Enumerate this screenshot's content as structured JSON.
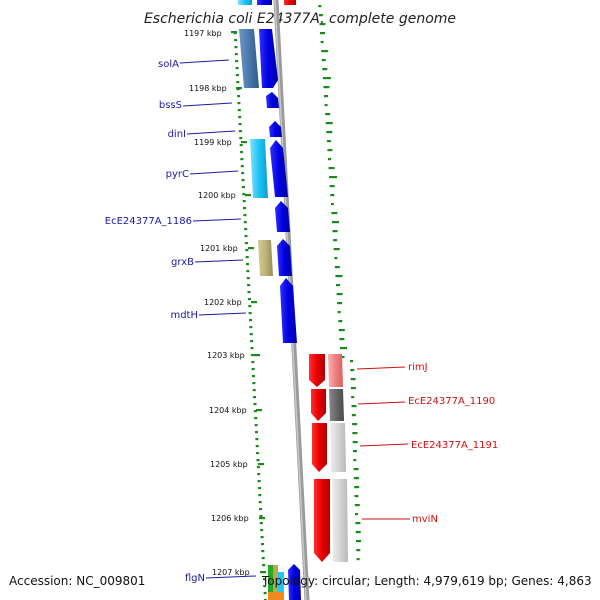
{
  "title": "Escherichia coli E24377A, complete genome",
  "kbp_ticks": [
    {
      "label": "1197 kbp"
    },
    {
      "label": "1198 kbp"
    },
    {
      "label": "1199 kbp"
    },
    {
      "label": "1200 kbp"
    },
    {
      "label": "1201 kbp"
    },
    {
      "label": "1202 kbp"
    },
    {
      "label": "1203 kbp"
    },
    {
      "label": "1204 kbp"
    },
    {
      "label": "1205 kbp"
    },
    {
      "label": "1206 kbp"
    },
    {
      "label": "1207 kbp"
    }
  ],
  "genes_left": [
    {
      "name": "solA"
    },
    {
      "name": "bssS"
    },
    {
      "name": "dinI"
    },
    {
      "name": "pyrC"
    },
    {
      "name": "EcE24377A_1186"
    },
    {
      "name": "grxB"
    },
    {
      "name": "mdtH"
    },
    {
      "name": "flgN"
    }
  ],
  "genes_right": [
    {
      "name": "rimJ"
    },
    {
      "name": "EcE24377A_1190"
    },
    {
      "name": "EcE24377A_1191"
    },
    {
      "name": "mviN"
    }
  ],
  "footer": {
    "accession": "Accession: NC_009801",
    "topology": "Topology: circular; Length: 4,979,619 bp; Genes: 4,863"
  },
  "colors": {
    "forward_strand": "#0000ee",
    "reverse_strand": "#ee0000",
    "backbone": "#888888",
    "tick_green": "#1a8a1a",
    "left_label": "#1a1aa8",
    "right_label": "#cc1111"
  }
}
